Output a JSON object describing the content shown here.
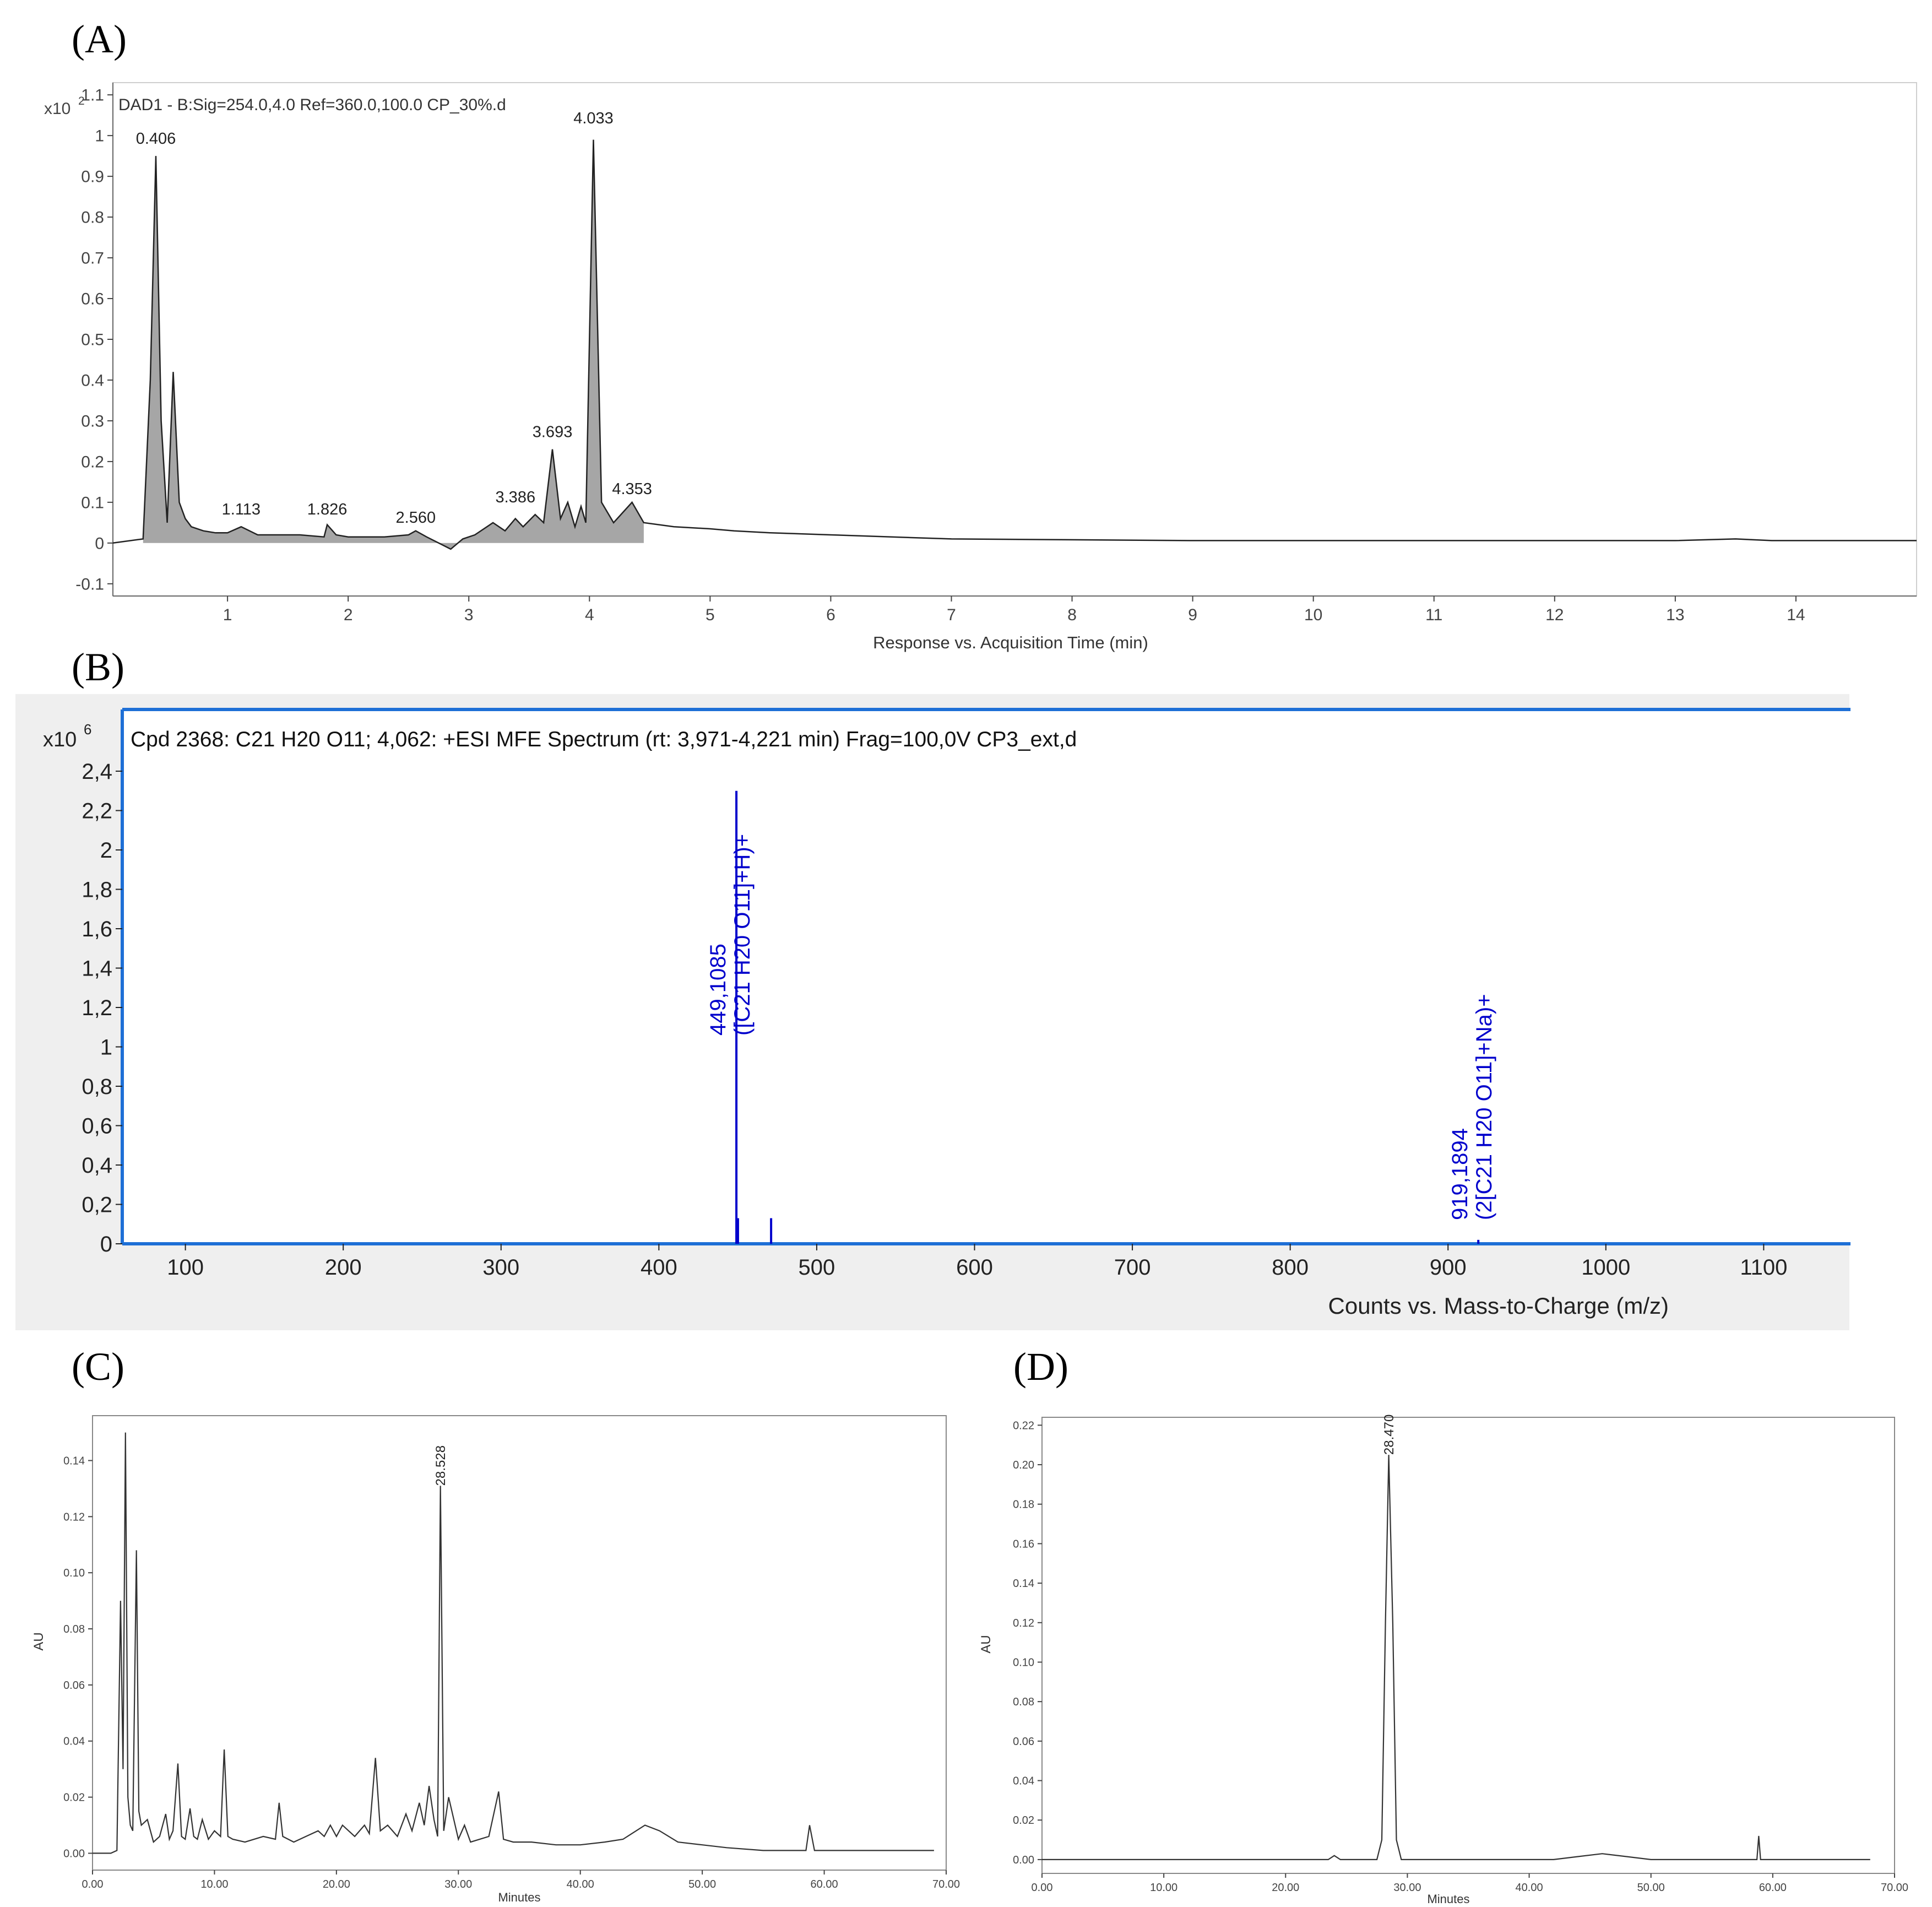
{
  "panels": {
    "A": {
      "label": "(A)"
    },
    "B": {
      "label": "(B)"
    },
    "C": {
      "label": "(C)"
    },
    "D": {
      "label": "(D)"
    }
  },
  "chart_data": [
    {
      "id": "A",
      "type": "line",
      "title": "DAD1 - B:Sig=254.0,4.0  Ref=360.0,100.0 CP_30%.d",
      "xlabel": "Response vs. Acquisition Time (min)",
      "ylabel": "",
      "y_multiplier": "x10",
      "y_exponent": "2",
      "xlim": [
        0.05,
        15.0
      ],
      "ylim": [
        -0.13,
        1.13
      ],
      "xticks": [
        "1",
        "2",
        "3",
        "4",
        "5",
        "6",
        "7",
        "8",
        "9",
        "10",
        "11",
        "12",
        "13",
        "14"
      ],
      "yticks": [
        "-0.1",
        "0",
        "0.1",
        "0.2",
        "0.3",
        "0.4",
        "0.5",
        "0.6",
        "0.7",
        "0.8",
        "0.9",
        "1",
        "1.1"
      ],
      "line_color": "#222222",
      "fill_color": "#a6a6a6",
      "peak_labels": [
        "0.406",
        "1.113",
        "1.826",
        "2.560",
        "3.386",
        "3.693",
        "4.033",
        "4.353"
      ],
      "peak_label_x": [
        0.406,
        1.113,
        1.826,
        2.56,
        3.386,
        3.693,
        4.033,
        4.353
      ],
      "peak_label_y": [
        0.98,
        0.07,
        0.07,
        0.05,
        0.1,
        0.26,
        1.03,
        0.12
      ],
      "x": [
        0.05,
        0.3,
        0.36,
        0.406,
        0.45,
        0.5,
        0.55,
        0.6,
        0.65,
        0.7,
        0.8,
        0.9,
        1.0,
        1.113,
        1.25,
        1.4,
        1.6,
        1.8,
        1.826,
        1.9,
        2.0,
        2.3,
        2.5,
        2.56,
        2.65,
        2.75,
        2.85,
        2.95,
        3.05,
        3.2,
        3.3,
        3.386,
        3.45,
        3.55,
        3.62,
        3.693,
        3.76,
        3.82,
        3.88,
        3.93,
        3.97,
        4.033,
        4.1,
        4.2,
        4.353,
        4.45,
        4.7,
        5.0,
        5.2,
        5.5,
        6.0,
        7.0,
        8.0,
        9.0,
        10.0,
        11.0,
        12.0,
        13.0,
        13.5,
        13.8,
        14.0,
        14.5,
        15.0
      ],
      "y": [
        0.0,
        0.01,
        0.4,
        0.95,
        0.3,
        0.05,
        0.42,
        0.1,
        0.06,
        0.04,
        0.03,
        0.025,
        0.025,
        0.04,
        0.02,
        0.02,
        0.02,
        0.015,
        0.045,
        0.02,
        0.015,
        0.015,
        0.02,
        0.03,
        0.015,
        0.0,
        -0.015,
        0.01,
        0.02,
        0.05,
        0.03,
        0.06,
        0.04,
        0.07,
        0.05,
        0.23,
        0.06,
        0.1,
        0.04,
        0.09,
        0.05,
        0.99,
        0.1,
        0.05,
        0.1,
        0.05,
        0.04,
        0.035,
        0.03,
        0.025,
        0.02,
        0.01,
        0.008,
        0.006,
        0.006,
        0.006,
        0.006,
        0.006,
        0.01,
        0.006,
        0.006,
        0.006,
        0.006
      ]
    },
    {
      "id": "B",
      "type": "bar",
      "title": "Cpd 2368: C21 H20 O11; 4,062: +ESI MFE Spectrum (rt: 3,971-4,221 min) Frag=100,0V CP3_ext,d",
      "xlabel": "Counts vs. Mass-to-Charge (m/z)",
      "ylabel": "",
      "y_multiplier": "x10",
      "y_exponent": "6",
      "xlim": [
        60,
        1155
      ],
      "ylim": [
        0,
        2.4
      ],
      "xticks": [
        "100",
        "200",
        "300",
        "400",
        "500",
        "600",
        "700",
        "800",
        "900",
        "1000",
        "1100"
      ],
      "yticks": [
        "0",
        "0,2",
        "0,4",
        "0,6",
        "0,8",
        "1",
        "1,2",
        "1,4",
        "1,6",
        "1,8",
        "2",
        "2,2",
        "2,4"
      ],
      "line_color": "#0000cc",
      "frame_color": "#1e6fd6",
      "panel_background": "#efefef",
      "peaks_mz": [
        449.1085,
        450.1,
        471.1,
        919.1894
      ],
      "peaks_intensity": [
        2.3,
        0.13,
        0.13,
        0.02
      ],
      "annotations": [
        {
          "mz": "449,1085",
          "ion": "([C21 H20 O11]+H)+"
        },
        {
          "mz": "919,1894",
          "ion": "(2[C21 H20 O11]+Na)+"
        }
      ]
    },
    {
      "id": "C",
      "type": "line",
      "title": "",
      "xlabel": "Minutes",
      "ylabel": "AU",
      "xlim": [
        0,
        70
      ],
      "ylim": [
        -0.006,
        0.156
      ],
      "xticks": [
        "0.00",
        "10.00",
        "20.00",
        "30.00",
        "40.00",
        "50.00",
        "60.00",
        "70.00"
      ],
      "yticks": [
        "0.00",
        "0.02",
        "0.04",
        "0.06",
        "0.08",
        "0.10",
        "0.12",
        "0.14"
      ],
      "line_color": "#333333",
      "peak_labels": [
        "28.528"
      ],
      "peak_label_x": [
        28.528
      ],
      "peak_label_y": [
        0.131
      ],
      "x": [
        0,
        1.5,
        2.0,
        2.3,
        2.5,
        2.7,
        2.9,
        3.1,
        3.3,
        3.6,
        3.8,
        4.0,
        4.5,
        5.0,
        5.5,
        6.0,
        6.3,
        6.6,
        7.0,
        7.3,
        7.6,
        8.0,
        8.3,
        8.6,
        9.0,
        9.5,
        10.0,
        10.5,
        10.8,
        11.1,
        11.5,
        12.5,
        14.0,
        15.0,
        15.3,
        15.6,
        16.5,
        17.5,
        18.5,
        19.0,
        19.5,
        20.0,
        20.5,
        21.5,
        22.3,
        22.7,
        23.2,
        23.6,
        24.2,
        25.0,
        25.7,
        26.2,
        26.8,
        27.2,
        27.6,
        28.0,
        28.3,
        28.528,
        28.8,
        29.2,
        30.0,
        30.5,
        31.0,
        32.5,
        33.3,
        33.7,
        34.5,
        36.0,
        38.0,
        40.0,
        42.0,
        43.5,
        45.3,
        46.5,
        48.0,
        50.0,
        52.0,
        55.0,
        58.5,
        58.8,
        59.2,
        60.0,
        65.0,
        69.0
      ],
      "y": [
        0,
        0,
        0.001,
        0.09,
        0.03,
        0.15,
        0.02,
        0.01,
        0.008,
        0.108,
        0.015,
        0.01,
        0.012,
        0.004,
        0.006,
        0.014,
        0.005,
        0.008,
        0.032,
        0.006,
        0.005,
        0.016,
        0.006,
        0.005,
        0.012,
        0.005,
        0.008,
        0.006,
        0.037,
        0.006,
        0.005,
        0.004,
        0.006,
        0.005,
        0.018,
        0.006,
        0.004,
        0.006,
        0.008,
        0.006,
        0.01,
        0.006,
        0.01,
        0.006,
        0.01,
        0.007,
        0.034,
        0.008,
        0.01,
        0.006,
        0.014,
        0.008,
        0.018,
        0.01,
        0.024,
        0.012,
        0.006,
        0.131,
        0.008,
        0.02,
        0.005,
        0.01,
        0.004,
        0.006,
        0.022,
        0.005,
        0.004,
        0.004,
        0.003,
        0.003,
        0.004,
        0.005,
        0.01,
        0.008,
        0.004,
        0.003,
        0.002,
        0.001,
        0.001,
        0.01,
        0.001,
        0.001,
        0.001,
        0.001
      ]
    },
    {
      "id": "D",
      "type": "line",
      "title": "",
      "xlabel": "Minutes",
      "ylabel": "AU",
      "xlim": [
        0,
        70
      ],
      "ylim": [
        -0.007,
        0.224
      ],
      "xticks": [
        "0.00",
        "10.00",
        "20.00",
        "30.00",
        "40.00",
        "50.00",
        "60.00",
        "70.00"
      ],
      "yticks": [
        "0.00",
        "0.02",
        "0.04",
        "0.06",
        "0.08",
        "0.10",
        "0.12",
        "0.14",
        "0.16",
        "0.18",
        "0.20",
        "0.22"
      ],
      "line_color": "#333333",
      "peak_labels": [
        "28.470"
      ],
      "peak_label_x": [
        28.47
      ],
      "peak_label_y": [
        0.205
      ],
      "x": [
        0,
        10,
        20,
        23.5,
        24.0,
        24.5,
        27.5,
        27.9,
        28.2,
        28.47,
        28.8,
        29.1,
        29.5,
        35,
        42,
        44,
        46,
        48,
        50,
        55,
        58.7,
        58.85,
        59.0,
        60,
        65,
        68
      ],
      "y": [
        0,
        0,
        0,
        0,
        0.002,
        0,
        0,
        0.01,
        0.12,
        0.205,
        0.12,
        0.01,
        0,
        0,
        0,
        0.0015,
        0.003,
        0.0015,
        0,
        0,
        0,
        0.012,
        0,
        0,
        0,
        0
      ]
    }
  ]
}
